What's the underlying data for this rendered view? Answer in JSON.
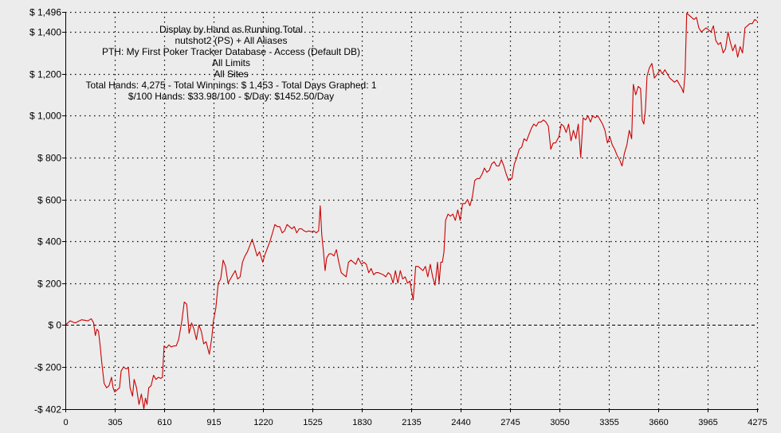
{
  "chart_data": {
    "type": "line",
    "title": "",
    "info_lines": [
      "Display by Hand as Running Total",
      "nutshot2 (PS) + All Aliases",
      "PTH: My First Poker Tracker Database - Access (Default DB)",
      "All Limits",
      "All Sites",
      "Total Hands: 4,275 - Total Winnings: $ 1,453 - Total Days Graphed: 1",
      "$/100 Hands: $33.98/100 - $/Day: $1452.50/Day"
    ],
    "xlabel": "",
    "ylabel": "",
    "xlim": [
      0,
      4275
    ],
    "ylim": [
      -402,
      1496
    ],
    "x_ticks": [
      "0",
      "305",
      "610",
      "915",
      "1220",
      "1525",
      "1830",
      "2135",
      "2440",
      "2745",
      "3050",
      "3355",
      "3660",
      "3965",
      "4275"
    ],
    "y_ticks": [
      {
        "value": 1496,
        "label": "$ 1,496"
      },
      {
        "value": 1400,
        "label": "$ 1,400"
      },
      {
        "value": 1200,
        "label": "$ 1,200"
      },
      {
        "value": 1000,
        "label": "$ 1,000"
      },
      {
        "value": 800,
        "label": "$ 800"
      },
      {
        "value": 600,
        "label": "$ 600"
      },
      {
        "value": 400,
        "label": "$ 400"
      },
      {
        "value": 200,
        "label": "$ 200"
      },
      {
        "value": 0,
        "label": "$ 0"
      },
      {
        "value": -200,
        "label": "-$ 200"
      },
      {
        "value": -402,
        "label": "-$ 402"
      }
    ],
    "grid": true,
    "colors": {
      "line": "#cc0000",
      "zero_line": "#000000",
      "grid": "#000000",
      "background": "#ececec"
    },
    "series": [
      {
        "values": [
          [
            0,
            0
          ],
          [
            30,
            20
          ],
          [
            60,
            10
          ],
          [
            100,
            25
          ],
          [
            140,
            20
          ],
          [
            160,
            30
          ],
          [
            175,
            10
          ],
          [
            185,
            -50
          ],
          [
            195,
            -20
          ],
          [
            205,
            -30
          ],
          [
            215,
            -100
          ],
          [
            225,
            -180
          ],
          [
            240,
            -280
          ],
          [
            255,
            -300
          ],
          [
            270,
            -290
          ],
          [
            285,
            -250
          ],
          [
            295,
            -300
          ],
          [
            305,
            -320
          ],
          [
            320,
            -310
          ],
          [
            335,
            -300
          ],
          [
            345,
            -220
          ],
          [
            360,
            -200
          ],
          [
            375,
            -210
          ],
          [
            390,
            -205
          ],
          [
            400,
            -300
          ],
          [
            415,
            -340
          ],
          [
            425,
            -260
          ],
          [
            440,
            -300
          ],
          [
            455,
            -380
          ],
          [
            470,
            -330
          ],
          [
            485,
            -400
          ],
          [
            495,
            -350
          ],
          [
            505,
            -380
          ],
          [
            515,
            -300
          ],
          [
            530,
            -290
          ],
          [
            545,
            -240
          ],
          [
            560,
            -260
          ],
          [
            575,
            -250
          ],
          [
            590,
            -255
          ],
          [
            600,
            -250
          ],
          [
            610,
            -100
          ],
          [
            625,
            -110
          ],
          [
            640,
            -95
          ],
          [
            655,
            -105
          ],
          [
            670,
            -100
          ],
          [
            685,
            -100
          ],
          [
            700,
            -70
          ],
          [
            720,
            20
          ],
          [
            735,
            110
          ],
          [
            750,
            100
          ],
          [
            765,
            -40
          ],
          [
            780,
            10
          ],
          [
            795,
            -20
          ],
          [
            810,
            -70
          ],
          [
            825,
            0
          ],
          [
            840,
            -30
          ],
          [
            855,
            -90
          ],
          [
            870,
            -80
          ],
          [
            890,
            -140
          ],
          [
            905,
            -60
          ],
          [
            915,
            20
          ],
          [
            930,
            80
          ],
          [
            945,
            200
          ],
          [
            960,
            220
          ],
          [
            975,
            310
          ],
          [
            990,
            280
          ],
          [
            1005,
            200
          ],
          [
            1020,
            220
          ],
          [
            1035,
            240
          ],
          [
            1050,
            260
          ],
          [
            1065,
            220
          ],
          [
            1080,
            230
          ],
          [
            1095,
            300
          ],
          [
            1110,
            330
          ],
          [
            1125,
            350
          ],
          [
            1140,
            380
          ],
          [
            1155,
            410
          ],
          [
            1170,
            370
          ],
          [
            1185,
            330
          ],
          [
            1200,
            350
          ],
          [
            1220,
            300
          ],
          [
            1235,
            340
          ],
          [
            1250,
            370
          ],
          [
            1265,
            400
          ],
          [
            1280,
            440
          ],
          [
            1295,
            480
          ],
          [
            1310,
            470
          ],
          [
            1325,
            470
          ],
          [
            1340,
            440
          ],
          [
            1355,
            450
          ],
          [
            1370,
            480
          ],
          [
            1385,
            470
          ],
          [
            1400,
            460
          ],
          [
            1415,
            470
          ],
          [
            1430,
            440
          ],
          [
            1445,
            460
          ],
          [
            1460,
            460
          ],
          [
            1475,
            450
          ],
          [
            1490,
            445
          ],
          [
            1505,
            450
          ],
          [
            1520,
            445
          ],
          [
            1535,
            450
          ],
          [
            1550,
            440
          ],
          [
            1565,
            450
          ],
          [
            1575,
            570
          ],
          [
            1585,
            430
          ],
          [
            1595,
            350
          ],
          [
            1605,
            260
          ],
          [
            1615,
            320
          ],
          [
            1630,
            340
          ],
          [
            1645,
            340
          ],
          [
            1660,
            330
          ],
          [
            1675,
            360
          ],
          [
            1690,
            300
          ],
          [
            1705,
            250
          ],
          [
            1720,
            240
          ],
          [
            1735,
            230
          ],
          [
            1750,
            300
          ],
          [
            1765,
            310
          ],
          [
            1780,
            300
          ],
          [
            1795,
            290
          ],
          [
            1810,
            320
          ],
          [
            1830,
            290
          ],
          [
            1845,
            300
          ],
          [
            1860,
            290
          ],
          [
            1875,
            250
          ],
          [
            1890,
            270
          ],
          [
            1905,
            240
          ],
          [
            1920,
            250
          ],
          [
            1935,
            250
          ],
          [
            1950,
            245
          ],
          [
            1965,
            240
          ],
          [
            1980,
            230
          ],
          [
            1995,
            250
          ],
          [
            2010,
            240
          ],
          [
            2025,
            200
          ],
          [
            2040,
            260
          ],
          [
            2055,
            200
          ],
          [
            2070,
            260
          ],
          [
            2085,
            220
          ],
          [
            2100,
            230
          ],
          [
            2115,
            200
          ],
          [
            2130,
            210
          ],
          [
            2140,
            160
          ],
          [
            2150,
            120
          ],
          [
            2165,
            280
          ],
          [
            2180,
            280
          ],
          [
            2195,
            270
          ],
          [
            2210,
            260
          ],
          [
            2225,
            280
          ],
          [
            2240,
            230
          ],
          [
            2255,
            290
          ],
          [
            2270,
            230
          ],
          [
            2285,
            190
          ],
          [
            2300,
            300
          ],
          [
            2310,
            200
          ],
          [
            2320,
            300
          ],
          [
            2330,
            300
          ],
          [
            2340,
            350
          ],
          [
            2350,
            500
          ],
          [
            2365,
            530
          ],
          [
            2380,
            520
          ],
          [
            2395,
            530
          ],
          [
            2410,
            500
          ],
          [
            2425,
            550
          ],
          [
            2440,
            500
          ],
          [
            2455,
            580
          ],
          [
            2470,
            580
          ],
          [
            2485,
            600
          ],
          [
            2500,
            570
          ],
          [
            2515,
            610
          ],
          [
            2530,
            690
          ],
          [
            2545,
            700
          ],
          [
            2560,
            700
          ],
          [
            2575,
            720
          ],
          [
            2590,
            750
          ],
          [
            2605,
            730
          ],
          [
            2620,
            740
          ],
          [
            2635,
            770
          ],
          [
            2650,
            780
          ],
          [
            2665,
            760
          ],
          [
            2680,
            760
          ],
          [
            2695,
            790
          ],
          [
            2710,
            760
          ],
          [
            2725,
            720
          ],
          [
            2740,
            690
          ],
          [
            2745,
            700
          ],
          [
            2760,
            700
          ],
          [
            2775,
            770
          ],
          [
            2790,
            800
          ],
          [
            2805,
            840
          ],
          [
            2820,
            850
          ],
          [
            2835,
            890
          ],
          [
            2850,
            880
          ],
          [
            2865,
            910
          ],
          [
            2880,
            940
          ],
          [
            2895,
            960
          ],
          [
            2910,
            950
          ],
          [
            2925,
            970
          ],
          [
            2940,
            970
          ],
          [
            2955,
            980
          ],
          [
            2970,
            970
          ],
          [
            2985,
            950
          ],
          [
            3000,
            840
          ],
          [
            3015,
            870
          ],
          [
            3030,
            870
          ],
          [
            3050,
            900
          ],
          [
            3065,
            960
          ],
          [
            3080,
            950
          ],
          [
            3095,
            920
          ],
          [
            3110,
            960
          ],
          [
            3125,
            880
          ],
          [
            3140,
            930
          ],
          [
            3155,
            890
          ],
          [
            3170,
            960
          ],
          [
            3185,
            800
          ],
          [
            3200,
            990
          ],
          [
            3215,
            980
          ],
          [
            3230,
            1000
          ],
          [
            3245,
            970
          ],
          [
            3260,
            1000
          ],
          [
            3275,
            990
          ],
          [
            3290,
            1000
          ],
          [
            3305,
            980
          ],
          [
            3320,
            960
          ],
          [
            3335,
            930
          ],
          [
            3350,
            870
          ],
          [
            3365,
            900
          ],
          [
            3380,
            860
          ],
          [
            3395,
            840
          ],
          [
            3410,
            810
          ],
          [
            3425,
            790
          ],
          [
            3440,
            760
          ],
          [
            3455,
            820
          ],
          [
            3470,
            860
          ],
          [
            3485,
            930
          ],
          [
            3500,
            890
          ],
          [
            3510,
            1150
          ],
          [
            3525,
            1100
          ],
          [
            3540,
            1140
          ],
          [
            3555,
            1130
          ],
          [
            3565,
            980
          ],
          [
            3575,
            960
          ],
          [
            3585,
            1030
          ],
          [
            3595,
            1190
          ],
          [
            3610,
            1230
          ],
          [
            3625,
            1250
          ],
          [
            3640,
            1180
          ],
          [
            3660,
            1200
          ],
          [
            3675,
            1220
          ],
          [
            3690,
            1200
          ],
          [
            3705,
            1220
          ],
          [
            3720,
            1200
          ],
          [
            3735,
            1180
          ],
          [
            3750,
            1170
          ],
          [
            3765,
            1160
          ],
          [
            3780,
            1170
          ],
          [
            3795,
            1150
          ],
          [
            3810,
            1130
          ],
          [
            3820,
            1110
          ],
          [
            3830,
            1200
          ],
          [
            3840,
            1490
          ],
          [
            3855,
            1480
          ],
          [
            3870,
            1470
          ],
          [
            3885,
            1460
          ],
          [
            3900,
            1470
          ],
          [
            3915,
            1420
          ],
          [
            3930,
            1400
          ],
          [
            3945,
            1410
          ],
          [
            3960,
            1420
          ],
          [
            3975,
            1410
          ],
          [
            3990,
            1400
          ],
          [
            4005,
            1430
          ],
          [
            4020,
            1360
          ],
          [
            4035,
            1340
          ],
          [
            4050,
            1350
          ],
          [
            4065,
            1300
          ],
          [
            4080,
            1320
          ],
          [
            4095,
            1400
          ],
          [
            4110,
            1350
          ],
          [
            4125,
            1310
          ],
          [
            4140,
            1340
          ],
          [
            4155,
            1280
          ],
          [
            4170,
            1330
          ],
          [
            4185,
            1300
          ],
          [
            4200,
            1420
          ],
          [
            4215,
            1430
          ],
          [
            4230,
            1440
          ],
          [
            4245,
            1440
          ],
          [
            4260,
            1460
          ],
          [
            4275,
            1453
          ]
        ]
      }
    ]
  }
}
